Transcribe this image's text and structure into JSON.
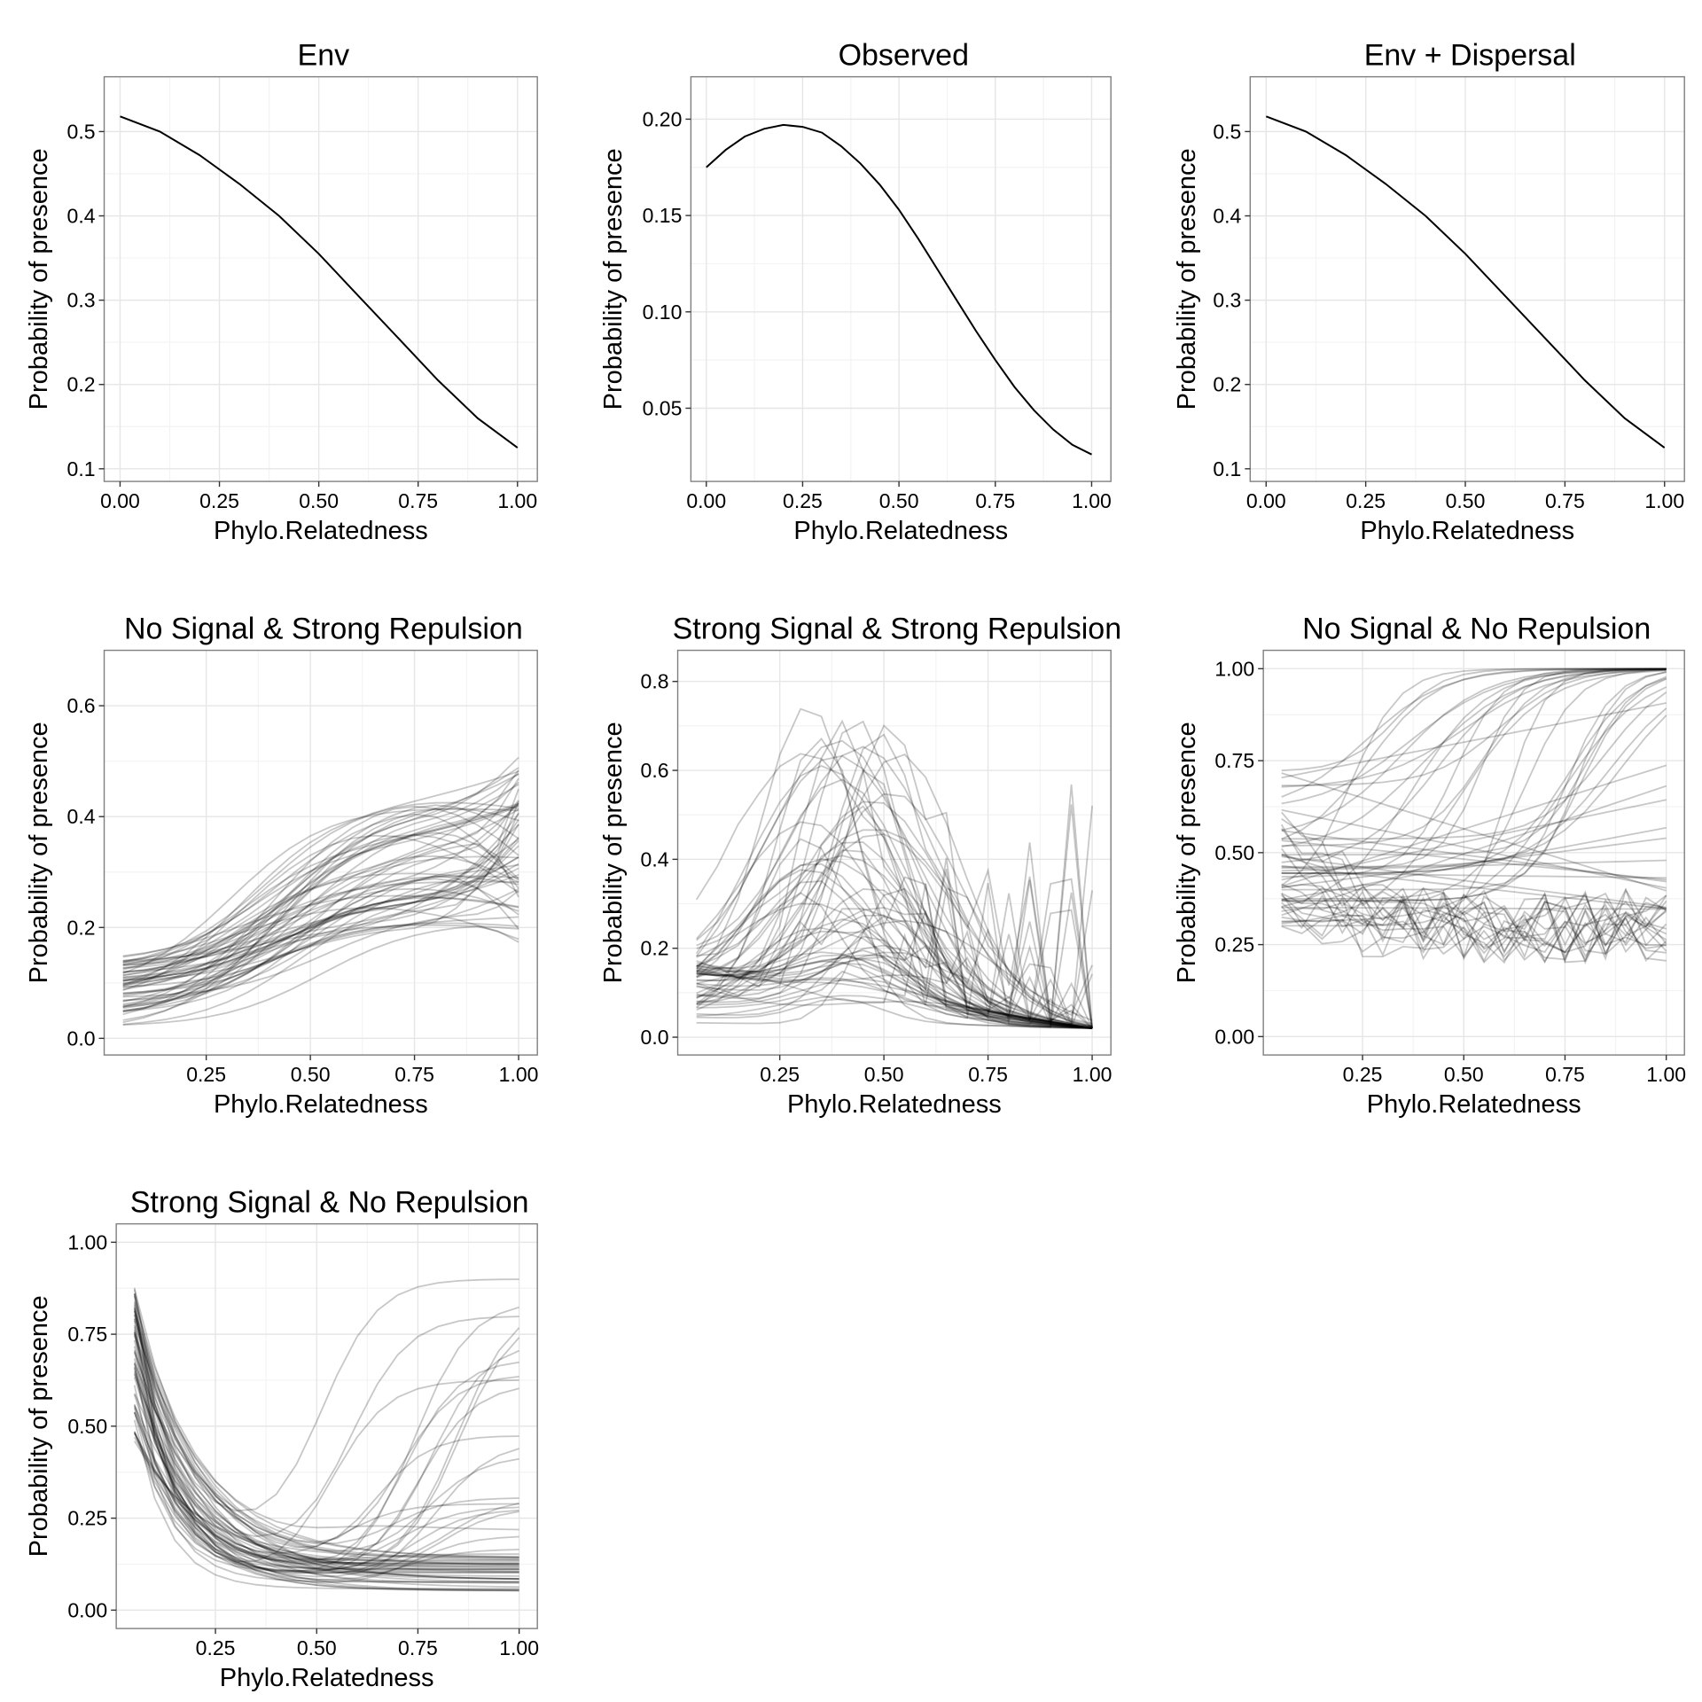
{
  "chart_data": [
    {
      "type": "line",
      "title": "Env",
      "xlabel": "Phylo.Relatedness",
      "ylabel": "Probability of presence",
      "xlim": [
        -0.04,
        1.05
      ],
      "ylim": [
        0.085,
        0.565
      ],
      "xticks": [
        0.0,
        0.25,
        0.5,
        0.75,
        1.0
      ],
      "xtick_labels": [
        "0.00",
        "0.25",
        "0.50",
        "0.75",
        "1.00"
      ],
      "yticks": [
        0.1,
        0.2,
        0.3,
        0.4,
        0.5
      ],
      "ytick_labels": [
        "0.1",
        "0.2",
        "0.3",
        "0.4",
        "0.5"
      ],
      "grid": true,
      "series": [
        {
          "x": [
            0.0,
            0.1,
            0.2,
            0.3,
            0.4,
            0.5,
            0.6,
            0.7,
            0.8,
            0.9,
            1.0
          ],
          "y": [
            0.518,
            0.5,
            0.472,
            0.438,
            0.4,
            0.355,
            0.305,
            0.255,
            0.205,
            0.16,
            0.125
          ]
        }
      ],
      "line_color": "#000000"
    },
    {
      "type": "line",
      "title": "Observed",
      "xlabel": "Phylo.Relatedness",
      "ylabel": "Probability of presence",
      "xlim": [
        -0.04,
        1.05
      ],
      "ylim": [
        0.012,
        0.222
      ],
      "xticks": [
        0.0,
        0.25,
        0.5,
        0.75,
        1.0
      ],
      "xtick_labels": [
        "0.00",
        "0.25",
        "0.50",
        "0.75",
        "1.00"
      ],
      "yticks": [
        0.05,
        0.1,
        0.15,
        0.2
      ],
      "ytick_labels": [
        "0.05",
        "0.10",
        "0.15",
        "0.20"
      ],
      "grid": true,
      "series": [
        {
          "x": [
            0.0,
            0.05,
            0.1,
            0.15,
            0.2,
            0.25,
            0.3,
            0.35,
            0.4,
            0.45,
            0.5,
            0.55,
            0.6,
            0.65,
            0.7,
            0.75,
            0.8,
            0.85,
            0.9,
            0.95,
            1.0
          ],
          "y": [
            0.175,
            0.184,
            0.191,
            0.195,
            0.197,
            0.196,
            0.193,
            0.186,
            0.177,
            0.166,
            0.153,
            0.138,
            0.122,
            0.106,
            0.09,
            0.075,
            0.061,
            0.049,
            0.039,
            0.031,
            0.026
          ]
        }
      ],
      "line_color": "#000000"
    },
    {
      "type": "line",
      "title": "Env + Dispersal",
      "xlabel": "Phylo.Relatedness",
      "ylabel": "Probability of presence",
      "xlim": [
        -0.04,
        1.05
      ],
      "ylim": [
        0.085,
        0.565
      ],
      "xticks": [
        0.0,
        0.25,
        0.5,
        0.75,
        1.0
      ],
      "xtick_labels": [
        "0.00",
        "0.25",
        "0.50",
        "0.75",
        "1.00"
      ],
      "yticks": [
        0.1,
        0.2,
        0.3,
        0.4,
        0.5
      ],
      "ytick_labels": [
        "0.1",
        "0.2",
        "0.3",
        "0.4",
        "0.5"
      ],
      "grid": true,
      "series": [
        {
          "x": [
            0.0,
            0.1,
            0.2,
            0.3,
            0.4,
            0.5,
            0.6,
            0.7,
            0.8,
            0.9,
            1.0
          ],
          "y": [
            0.518,
            0.5,
            0.472,
            0.438,
            0.4,
            0.355,
            0.305,
            0.255,
            0.205,
            0.16,
            0.125
          ]
        }
      ],
      "line_color": "#000000"
    },
    {
      "type": "line",
      "title": "No Signal & Strong Repulsion",
      "xlabel": "Phylo.Relatedness",
      "ylabel": "Probability of presence",
      "xlim": [
        0.005,
        1.045
      ],
      "ylim": [
        -0.03,
        0.7
      ],
      "xticks": [
        0.25,
        0.5,
        0.75,
        1.0
      ],
      "xtick_labels": [
        "0.25",
        "0.50",
        "0.75",
        "1.00"
      ],
      "yticks": [
        0.0,
        0.2,
        0.4,
        0.6
      ],
      "ytick_labels": [
        "0.0",
        "0.2",
        "0.4",
        "0.6"
      ],
      "grid": true,
      "x": [
        0.05,
        0.1,
        0.15,
        0.2,
        0.25,
        0.3,
        0.35,
        0.4,
        0.45,
        0.5,
        0.55,
        0.6,
        0.65,
        0.7,
        0.75,
        0.8,
        0.85,
        0.9,
        0.95,
        1.0
      ],
      "ensemble": {
        "count": 60,
        "start": [
          0.01,
          0.14
        ],
        "mid": [
          0.1,
          0.4
        ],
        "end": [
          0.08,
          0.6
        ],
        "mid_x": [
          0.55,
          0.95
        ],
        "shape": "rising"
      },
      "line_color": "#000000",
      "line_opacity": 0.22
    },
    {
      "type": "line",
      "title": "Strong Signal & Strong Repulsion",
      "xlabel": "Phylo.Relatedness",
      "ylabel": "Probability of presence",
      "xlim": [
        0.005,
        1.045
      ],
      "ylim": [
        -0.04,
        0.87
      ],
      "xticks": [
        0.25,
        0.5,
        0.75,
        1.0
      ],
      "xtick_labels": [
        "0.25",
        "0.50",
        "0.75",
        "1.00"
      ],
      "yticks": [
        0.0,
        0.2,
        0.4,
        0.6,
        0.8
      ],
      "ytick_labels": [
        "0.0",
        "0.2",
        "0.4",
        "0.6",
        "0.8"
      ],
      "grid": true,
      "x": [
        0.05,
        0.1,
        0.15,
        0.2,
        0.25,
        0.3,
        0.35,
        0.4,
        0.45,
        0.5,
        0.55,
        0.6,
        0.65,
        0.7,
        0.75,
        0.8,
        0.85,
        0.9,
        0.95,
        1.0
      ],
      "ensemble": {
        "count": 60,
        "start": [
          0.03,
          0.19
        ],
        "mid": [
          0.06,
          0.75
        ],
        "end": [
          0.0,
          0.6
        ],
        "mid_x": [
          0.28,
          0.55
        ],
        "shape": "hump"
      },
      "line_color": "#000000",
      "line_opacity": 0.22
    },
    {
      "type": "line",
      "title": "No Signal & No Repulsion",
      "xlabel": "Phylo.Relatedness",
      "ylabel": "Probability of presence",
      "xlim": [
        0.005,
        1.045
      ],
      "ylim": [
        -0.05,
        1.05
      ],
      "xticks": [
        0.25,
        0.5,
        0.75,
        1.0
      ],
      "xtick_labels": [
        "0.25",
        "0.50",
        "0.75",
        "1.00"
      ],
      "yticks": [
        0.0,
        0.25,
        0.5,
        0.75,
        1.0
      ],
      "ytick_labels": [
        "0.00",
        "0.25",
        "0.50",
        "0.75",
        "1.00"
      ],
      "grid": true,
      "x": [
        0.05,
        0.1,
        0.15,
        0.2,
        0.25,
        0.3,
        0.35,
        0.4,
        0.45,
        0.5,
        0.55,
        0.6,
        0.65,
        0.7,
        0.75,
        0.8,
        0.85,
        0.9,
        0.95,
        1.0
      ],
      "ensemble": {
        "count": 60,
        "start": [
          0.25,
          0.74
        ],
        "mid": [
          0.23,
          1.0
        ],
        "end": [
          0.16,
          1.0
        ],
        "mid_x": [
          0.2,
          0.9
        ],
        "shape": "mixed"
      },
      "line_color": "#000000",
      "line_opacity": 0.22
    },
    {
      "type": "line",
      "title": "Strong Signal & No Repulsion",
      "xlabel": "Phylo.Relatedness",
      "ylabel": "Probability of presence",
      "xlim": [
        0.005,
        1.045
      ],
      "ylim": [
        -0.05,
        1.05
      ],
      "xticks": [
        0.25,
        0.5,
        0.75,
        1.0
      ],
      "xtick_labels": [
        "0.25",
        "0.50",
        "0.75",
        "1.00"
      ],
      "yticks": [
        0.0,
        0.25,
        0.5,
        0.75,
        1.0
      ],
      "ytick_labels": [
        "0.00",
        "0.25",
        "0.50",
        "0.75",
        "1.00"
      ],
      "grid": true,
      "x": [
        0.05,
        0.1,
        0.15,
        0.2,
        0.25,
        0.3,
        0.35,
        0.4,
        0.45,
        0.5,
        0.55,
        0.6,
        0.65,
        0.7,
        0.75,
        0.8,
        0.85,
        0.9,
        0.95,
        1.0
      ],
      "ensemble": {
        "count": 60,
        "start": [
          0.45,
          0.88
        ],
        "mid": [
          0.05,
          0.3
        ],
        "end": [
          0.04,
          1.0
        ],
        "mid_x": [
          0.5,
          0.85
        ],
        "shape": "decay"
      },
      "line_color": "#000000",
      "line_opacity": 0.22
    }
  ]
}
